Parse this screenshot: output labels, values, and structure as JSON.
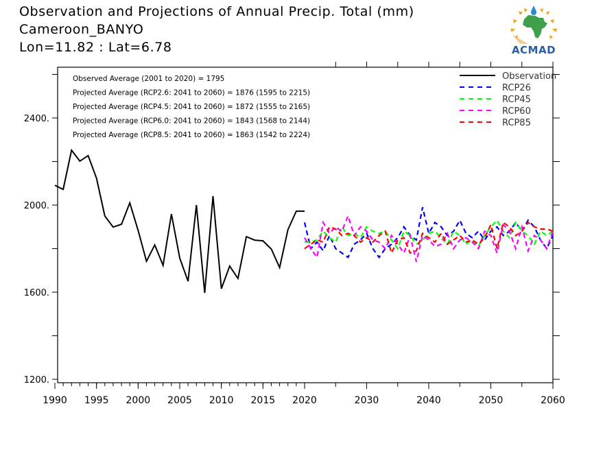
{
  "header": {
    "title": "Observation and Projections of Annual Precip. Total (mm)",
    "station": "Cameroon_BANYO",
    "coords": "Lon=11.82 : Lat=6.78"
  },
  "logo": {
    "text": "ACMAD",
    "icon": "africa-map-logo-icon"
  },
  "chart_data": {
    "type": "line",
    "title": "Observation and Projections of Annual Precip. Total (mm)",
    "subtitle": "Cameroon_BANYO / Lon=11.82 : Lat=6.78",
    "xlabel": "",
    "ylabel": "",
    "xlim": [
      1990,
      2060
    ],
    "ylim": [
      1200,
      2600
    ],
    "yticks": [
      1200,
      1600,
      2000,
      2400
    ],
    "ytick_labels": [
      "1200.",
      "1600.",
      "2000.",
      "2400."
    ],
    "xticks": [
      1990,
      1995,
      2000,
      2005,
      2010,
      2015,
      2020,
      2030,
      2040,
      2050,
      2060
    ],
    "xtick_labels": [
      "1990",
      "1995",
      "2000",
      "2005",
      "2010",
      "2015",
      "2020",
      "2030",
      "2040",
      "2050",
      "2060"
    ],
    "grid": false,
    "legend_position": "top-right",
    "annotations": [
      "Observed Average (2001 to 2020) = 1795",
      "Projected Average (RCP2.6: 2041 to 2060) =  1876 (1595 to 2215)",
      "Projected Average (RCP4.5: 2041 to 2060) =  1872 (1555 to 2165)",
      "Projected Average (RCP6.0: 2041 to 2060) =  1843 (1568 to 2144)",
      "Projected Average (RCP8.5: 2041 to 2060) =  1863 (1542 to 2224)"
    ],
    "series": [
      {
        "name": "Observation",
        "color": "#000000",
        "style": "solid",
        "x": [
          1990,
          1991,
          1992,
          1993,
          1994,
          1995,
          1996,
          1997,
          1998,
          1999,
          2000,
          2001,
          2002,
          2003,
          2004,
          2005,
          2006,
          2007,
          2008,
          2009,
          2010,
          2011,
          2012,
          2013,
          2014,
          2015,
          2016,
          2017,
          2018,
          2019,
          2020
        ],
        "values": [
          2091,
          2072,
          2252,
          2202,
          2227,
          2123,
          1950,
          1899,
          1912,
          2010,
          1884,
          1742,
          1817,
          1723,
          1959,
          1757,
          1650,
          2000,
          1597,
          2041,
          1616,
          1720,
          1663,
          1855,
          1839,
          1836,
          1798,
          1713,
          1887,
          1972,
          1972
        ]
      },
      {
        "name": "RCP26",
        "color": "#0000ff",
        "style": "dashed",
        "x": [
          2020,
          2021,
          2022,
          2023,
          2024,
          2025,
          2026,
          2027,
          2028,
          2029,
          2030,
          2031,
          2032,
          2033,
          2034,
          2035,
          2036,
          2037,
          2038,
          2039,
          2040,
          2041,
          2042,
          2043,
          2044,
          2045,
          2046,
          2047,
          2048,
          2049,
          2050,
          2051,
          2052,
          2053,
          2054,
          2055,
          2056,
          2057,
          2058,
          2059,
          2060
        ],
        "values": [
          1920,
          1800,
          1830,
          1790,
          1860,
          1800,
          1780,
          1760,
          1820,
          1840,
          1870,
          1800,
          1760,
          1800,
          1820,
          1850,
          1900,
          1860,
          1840,
          1990,
          1870,
          1920,
          1900,
          1860,
          1880,
          1930,
          1870,
          1850,
          1880,
          1840,
          1880,
          1900,
          1860,
          1880,
          1920,
          1880,
          1930,
          1900,
          1840,
          1800,
          1860
        ]
      },
      {
        "name": "RCP45",
        "color": "#00ff00",
        "style": "dashed",
        "x": [
          2020,
          2021,
          2022,
          2023,
          2024,
          2025,
          2026,
          2027,
          2028,
          2029,
          2030,
          2031,
          2032,
          2033,
          2034,
          2035,
          2036,
          2037,
          2038,
          2039,
          2040,
          2041,
          2042,
          2043,
          2044,
          2045,
          2046,
          2047,
          2048,
          2049,
          2050,
          2051,
          2052,
          2053,
          2054,
          2055,
          2056,
          2057,
          2058,
          2059,
          2060
        ],
        "values": [
          1830,
          1830,
          1840,
          1880,
          1850,
          1830,
          1900,
          1860,
          1870,
          1850,
          1900,
          1880,
          1870,
          1880,
          1840,
          1800,
          1880,
          1860,
          1820,
          1840,
          1870,
          1880,
          1850,
          1820,
          1880,
          1860,
          1820,
          1840,
          1810,
          1860,
          1900,
          1930,
          1880,
          1850,
          1920,
          1880,
          1860,
          1820,
          1880,
          1860,
          1880
        ]
      },
      {
        "name": "RCP60",
        "color": "#ff00ff",
        "style": "dashed",
        "x": [
          2020,
          2021,
          2022,
          2023,
          2024,
          2025,
          2026,
          2027,
          2028,
          2029,
          2030,
          2031,
          2032,
          2033,
          2034,
          2035,
          2036,
          2037,
          2038,
          2039,
          2040,
          2041,
          2042,
          2043,
          2044,
          2045,
          2046,
          2047,
          2048,
          2049,
          2050,
          2051,
          2052,
          2053,
          2054,
          2055,
          2056,
          2057,
          2058,
          2059,
          2060
        ],
        "values": [
          1850,
          1800,
          1760,
          1920,
          1870,
          1900,
          1880,
          1950,
          1860,
          1900,
          1880,
          1840,
          1830,
          1800,
          1860,
          1820,
          1780,
          1860,
          1740,
          1860,
          1840,
          1810,
          1820,
          1870,
          1800,
          1840,
          1850,
          1830,
          1800,
          1880,
          1860,
          1780,
          1910,
          1880,
          1800,
          1900,
          1790,
          1860,
          1840,
          1800,
          1880
        ]
      },
      {
        "name": "RCP85",
        "color": "#ff0000",
        "style": "dashed",
        "x": [
          2020,
          2021,
          2022,
          2023,
          2024,
          2025,
          2026,
          2027,
          2028,
          2029,
          2030,
          2031,
          2032,
          2033,
          2034,
          2035,
          2036,
          2037,
          2038,
          2039,
          2040,
          2041,
          2042,
          2043,
          2044,
          2045,
          2046,
          2047,
          2048,
          2049,
          2050,
          2051,
          2052,
          2053,
          2054,
          2055,
          2056,
          2057,
          2058,
          2059,
          2060
        ],
        "values": [
          1800,
          1820,
          1840,
          1830,
          1900,
          1890,
          1860,
          1870,
          1860,
          1830,
          1850,
          1830,
          1860,
          1880,
          1780,
          1840,
          1850,
          1780,
          1790,
          1870,
          1850,
          1830,
          1870,
          1820,
          1840,
          1860,
          1830,
          1840,
          1820,
          1850,
          1910,
          1800,
          1920,
          1900,
          1860,
          1880,
          1920,
          1900,
          1890,
          1890,
          1880
        ]
      }
    ]
  }
}
